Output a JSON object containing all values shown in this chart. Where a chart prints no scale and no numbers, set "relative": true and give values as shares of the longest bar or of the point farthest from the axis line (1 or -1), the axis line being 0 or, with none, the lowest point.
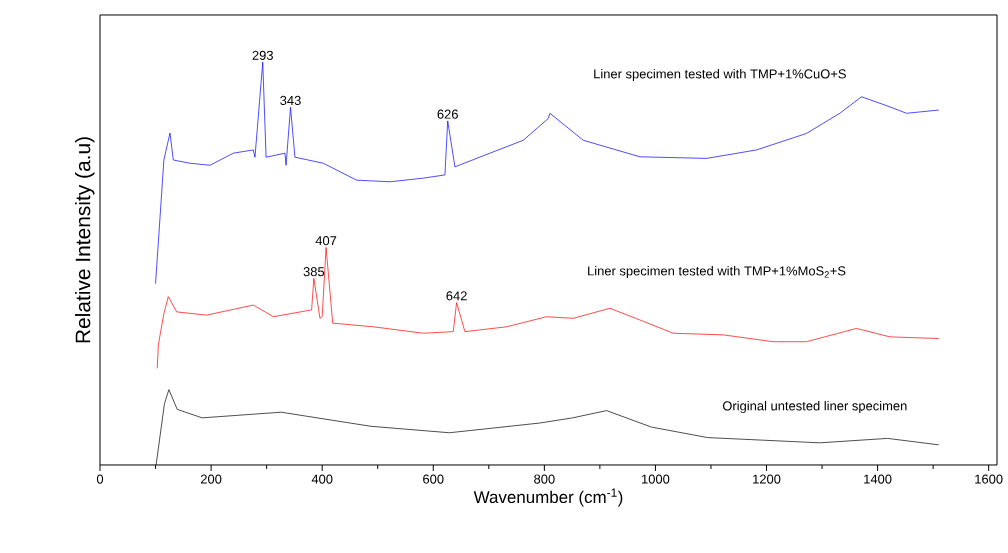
{
  "chart_data": {
    "type": "line",
    "xlabel": "Wavenumber (cm$^{-1}$)",
    "ylabel": "Relative Intensity (a.u)",
    "relative": true,
    "xlim": [
      0,
      1615
    ],
    "xticks": [
      0,
      200,
      400,
      600,
      800,
      1000,
      1200,
      1400,
      1600
    ],
    "series": [
      {
        "name": "Liner specimen tested with TMP+1%CuO+S",
        "color": "#0000ff",
        "x": [
          100,
          115,
          126,
          132,
          162,
          198,
          240,
          276,
          279,
          293,
          299,
          333,
          335,
          343,
          351,
          402,
          462,
          522,
          582,
          621,
          626,
          639,
          702,
          762,
          807,
          810,
          870,
          972,
          1092,
          1182,
          1272,
          1332,
          1371,
          1422,
          1452,
          1510
        ],
        "values": [
          0.45,
          0.757,
          0.824,
          0.757,
          0.749,
          0.744,
          0.774,
          0.782,
          0.764,
          1.0,
          0.764,
          0.774,
          0.744,
          0.888,
          0.764,
          0.749,
          0.707,
          0.703,
          0.712,
          0.72,
          0.854,
          0.74,
          0.774,
          0.806,
          0.86,
          0.873,
          0.806,
          0.765,
          0.761,
          0.782,
          0.823,
          0.873,
          0.914,
          0.889,
          0.873,
          0.881
        ]
      },
      {
        "name": "Liner specimen tested with TMP+1%MoS$_{2}$+S",
        "color": "#ff0000",
        "x": [
          103,
          105,
          115,
          123,
          138,
          192,
          276,
          312,
          381,
          385,
          396,
          400,
          407,
          419,
          492,
          582,
          636,
          642,
          657,
          732,
          804,
          852,
          918,
          972,
          1032,
          1122,
          1212,
          1272,
          1362,
          1422,
          1510
        ],
        "values": [
          0.24,
          0.298,
          0.376,
          0.418,
          0.38,
          0.372,
          0.397,
          0.368,
          0.385,
          0.463,
          0.364,
          0.368,
          0.54,
          0.352,
          0.343,
          0.327,
          0.331,
          0.403,
          0.331,
          0.343,
          0.368,
          0.364,
          0.389,
          0.36,
          0.327,
          0.323,
          0.306,
          0.306,
          0.339,
          0.318,
          0.314
        ]
      },
      {
        "name": "Original untested liner specimen",
        "color": "#000000",
        "x": [
          101,
          116,
          124,
          139,
          184,
          326,
          488,
          629,
          791,
          851,
          912,
          993,
          1094,
          1296,
          1418,
          1510
        ],
        "values": [
          0.0,
          0.152,
          0.187,
          0.138,
          0.117,
          0.131,
          0.096,
          0.08,
          0.104,
          0.117,
          0.135,
          0.094,
          0.068,
          0.055,
          0.066,
          0.05
        ]
      }
    ],
    "annotations": [
      {
        "text": "293",
        "x": 293,
        "y": 1.0
      },
      {
        "text": "343",
        "x": 343,
        "y": 0.888
      },
      {
        "text": "626",
        "x": 626,
        "y": 0.854
      },
      {
        "text": "385",
        "x": 385,
        "y": 0.463
      },
      {
        "text": "407",
        "x": 407,
        "y": 0.54
      },
      {
        "text": "642",
        "x": 642,
        "y": 0.403
      }
    ]
  }
}
